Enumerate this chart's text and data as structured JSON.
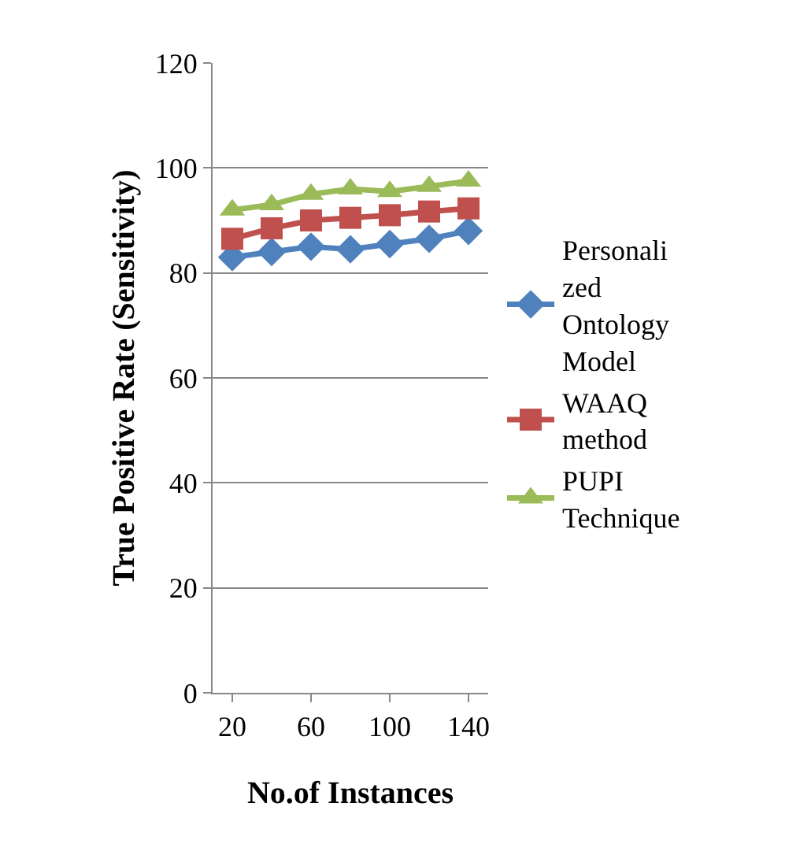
{
  "chart_data": {
    "type": "line",
    "xlabel": "No.of Instances",
    "ylabel": "True Positive Rate (Sensitivity)",
    "categories": [
      "20",
      null,
      "60",
      null,
      "100",
      null,
      "140"
    ],
    "series": [
      {
        "name": "Personalized Ontology Model",
        "color": "#4f81bd",
        "marker": "diamond",
        "values": [
          83,
          84,
          85,
          84.5,
          85.5,
          86.5,
          88
        ]
      },
      {
        "name": "WAAQ method",
        "color": "#c0504d",
        "marker": "square",
        "values": [
          86.5,
          88.5,
          90,
          90.5,
          91,
          91.7,
          92.3
        ]
      },
      {
        "name": "PUPI Technique",
        "color": "#9bbb59",
        "marker": "triangle",
        "values": [
          92,
          93,
          95,
          96,
          95.5,
          96.5,
          97.5
        ]
      }
    ],
    "ylim": [
      0,
      120
    ],
    "yticks": [
      0,
      20,
      40,
      60,
      80,
      100,
      120
    ],
    "grid": "y",
    "legend": "right",
    "line_style": "solid"
  }
}
